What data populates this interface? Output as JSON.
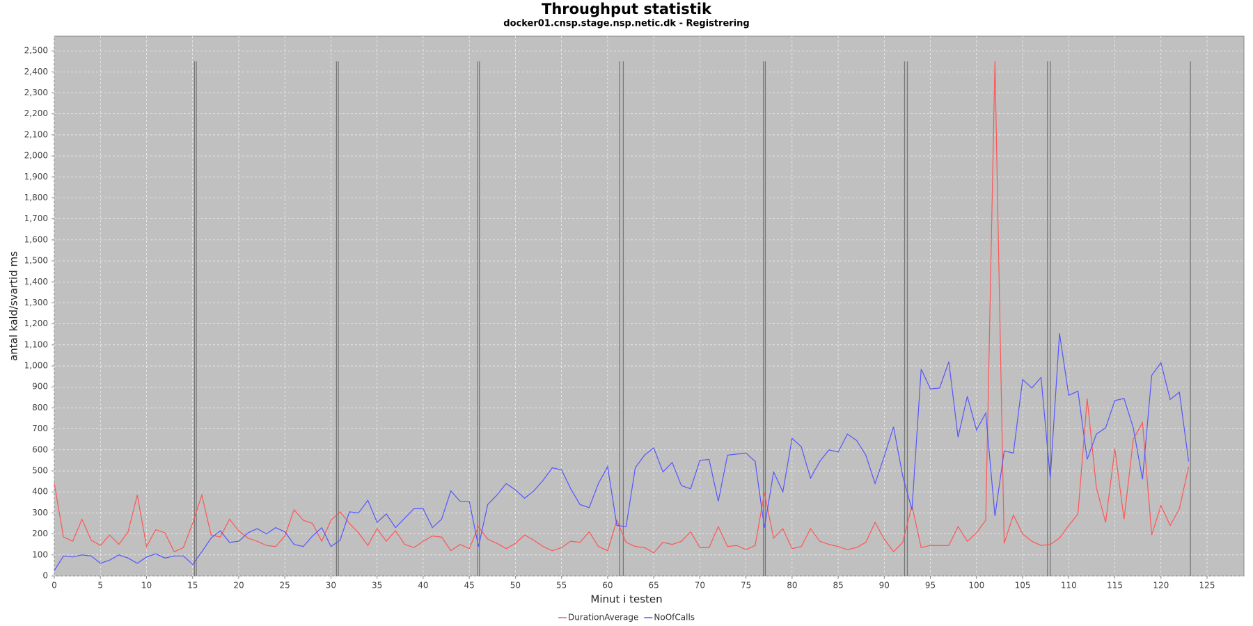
{
  "chart_data": {
    "type": "line",
    "title": "Throughput statistik",
    "subtitle": "docker01.cnsp.stage.nsp.netic.dk - Registrering",
    "x_label": "Minut i testen",
    "y_label": "antal kald/svartid ms",
    "x": [
      0,
      1,
      2,
      3,
      4,
      5,
      6,
      7,
      8,
      9,
      10,
      11,
      12,
      13,
      14,
      15,
      16,
      17,
      18,
      19,
      20,
      21,
      22,
      23,
      24,
      25,
      26,
      27,
      28,
      29,
      30,
      31,
      32,
      33,
      34,
      35,
      36,
      37,
      38,
      39,
      40,
      41,
      42,
      43,
      44,
      45,
      46,
      47,
      48,
      49,
      50,
      51,
      52,
      53,
      54,
      55,
      56,
      57,
      58,
      59,
      60,
      61,
      62,
      63,
      64,
      65,
      66,
      67,
      68,
      69,
      70,
      71,
      72,
      73,
      74,
      75,
      76,
      77,
      78,
      79,
      80,
      81,
      82,
      83,
      84,
      85,
      86,
      87,
      88,
      89,
      90,
      91,
      92,
      93,
      94,
      95,
      96,
      97,
      98,
      99,
      100,
      101,
      102,
      103,
      104,
      105,
      106,
      107,
      108,
      109,
      110,
      111,
      112,
      113,
      114,
      115,
      116,
      117,
      118,
      119,
      120,
      121,
      122,
      123
    ],
    "series": [
      {
        "name": "DurationAverage",
        "color": "#ff5555",
        "values": [
          440,
          185,
          165,
          270,
          170,
          145,
          195,
          150,
          210,
          385,
          140,
          220,
          205,
          115,
          135,
          250,
          385,
          195,
          185,
          270,
          215,
          180,
          165,
          145,
          140,
          190,
          315,
          265,
          250,
          165,
          265,
          305,
          250,
          205,
          145,
          225,
          165,
          215,
          150,
          135,
          165,
          190,
          185,
          120,
          150,
          130,
          235,
          175,
          155,
          130,
          155,
          195,
          170,
          140,
          120,
          135,
          165,
          160,
          210,
          140,
          120,
          265,
          160,
          140,
          135,
          110,
          160,
          150,
          165,
          210,
          135,
          135,
          235,
          140,
          145,
          125,
          145,
          395,
          180,
          225,
          130,
          140,
          225,
          165,
          150,
          140,
          125,
          135,
          160,
          255,
          175,
          115,
          160,
          335,
          135,
          145,
          145,
          145,
          235,
          165,
          205,
          265,
          2450,
          155,
          290,
          200,
          165,
          145,
          150,
          180,
          240,
          295,
          845,
          420,
          255,
          605,
          270,
          650,
          730,
          195,
          335,
          240,
          320,
          520
        ]
      },
      {
        "name": "NoOfCalls",
        "color": "#5555ff",
        "values": [
          25,
          95,
          90,
          100,
          95,
          60,
          75,
          100,
          85,
          60,
          90,
          105,
          85,
          95,
          95,
          55,
          115,
          180,
          215,
          160,
          165,
          205,
          225,
          200,
          230,
          210,
          150,
          140,
          190,
          230,
          140,
          170,
          305,
          300,
          360,
          255,
          295,
          230,
          275,
          320,
          320,
          230,
          270,
          405,
          355,
          355,
          140,
          340,
          385,
          440,
          410,
          370,
          405,
          455,
          515,
          505,
          415,
          340,
          325,
          440,
          520,
          240,
          235,
          515,
          575,
          610,
          495,
          540,
          430,
          415,
          550,
          555,
          355,
          575,
          580,
          585,
          545,
          230,
          495,
          400,
          655,
          615,
          465,
          545,
          600,
          590,
          675,
          645,
          575,
          440,
          570,
          710,
          475,
          315,
          985,
          890,
          895,
          1020,
          660,
          855,
          695,
          775,
          285,
          595,
          585,
          935,
          895,
          945,
          465,
          1155,
          860,
          880,
          555,
          675,
          705,
          835,
          845,
          705,
          460,
          955,
          1015,
          840,
          875,
          545
        ]
      }
    ],
    "markers": [
      15.2,
      15.4,
      30.6,
      30.8,
      45.9,
      46.1,
      61.3,
      61.7,
      76.9,
      77.1,
      92.2,
      92.5,
      107.7,
      108,
      123.2
    ],
    "marker_height": 2450,
    "xlim": [
      0,
      129
    ],
    "ylim": [
      0,
      2570
    ],
    "xticks": [
      0,
      5,
      10,
      15,
      20,
      25,
      30,
      35,
      40,
      45,
      50,
      55,
      60,
      65,
      70,
      75,
      80,
      85,
      90,
      95,
      100,
      105,
      110,
      115,
      120,
      125
    ],
    "yticks": [
      0,
      100,
      200,
      300,
      400,
      500,
      600,
      700,
      800,
      900,
      {
        "value": 1000,
        "label": "1,000"
      },
      {
        "value": 1100,
        "label": "1,100"
      },
      {
        "value": 1200,
        "label": "1,200"
      },
      {
        "value": 1300,
        "label": "1,300"
      },
      {
        "value": 1400,
        "label": "1,400"
      },
      {
        "value": 1500,
        "label": "1,500"
      },
      {
        "value": 1600,
        "label": "1,600"
      },
      {
        "value": 1700,
        "label": "1,700"
      },
      {
        "value": 1800,
        "label": "1,800"
      },
      {
        "value": 1900,
        "label": "1,900"
      },
      {
        "value": 2000,
        "label": "2,000"
      },
      {
        "value": 2100,
        "label": "2,100"
      },
      {
        "value": 2200,
        "label": "2,200"
      },
      {
        "value": 2300,
        "label": "2,300"
      },
      {
        "value": 2400,
        "label": "2,400"
      },
      {
        "value": 2500,
        "label": "2,500"
      }
    ],
    "grid": true,
    "legend": "bottom"
  }
}
